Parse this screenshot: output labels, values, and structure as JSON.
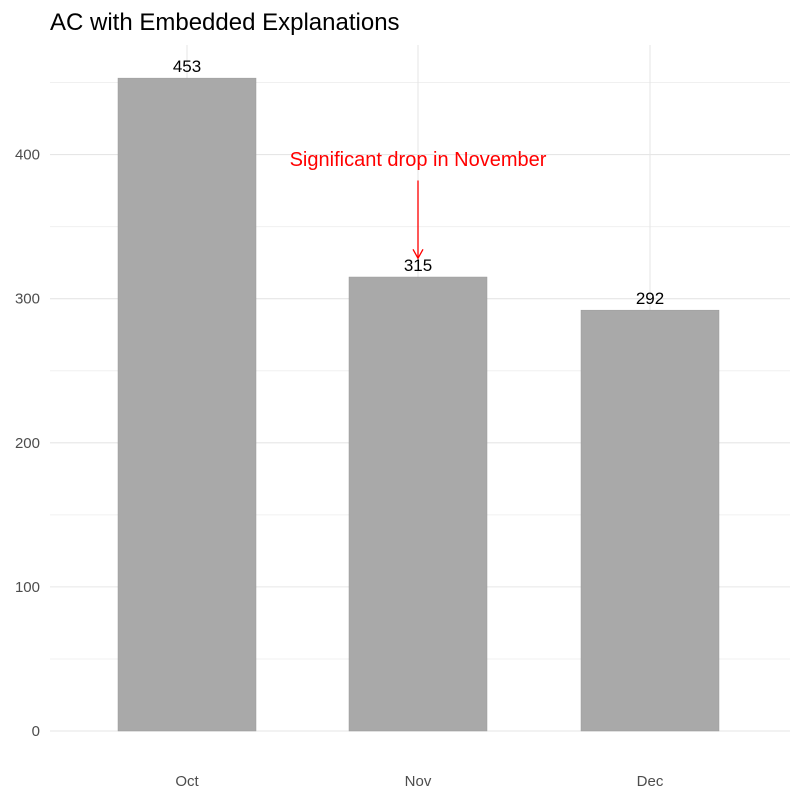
{
  "chart_data": {
    "type": "bar",
    "title": "AC with Embedded Explanations",
    "categories": [
      "Oct",
      "Nov",
      "Dec"
    ],
    "values": [
      453,
      315,
      292
    ],
    "data_labels": [
      "453",
      "315",
      "292"
    ],
    "xlabel": "",
    "ylabel": "",
    "ylim": [
      0,
      476
    ],
    "yticks": [
      0,
      100,
      200,
      300,
      400
    ],
    "ytick_labels": [
      "0",
      "100",
      "200",
      "300",
      "400"
    ],
    "grid": true,
    "bar_color": "#a9a9a9",
    "annotation": {
      "text": "Significant drop in November",
      "color": "#ff0000",
      "target_category": "Nov",
      "text_value": 392,
      "arrow_from_value": 382,
      "arrow_to_value": 328
    }
  }
}
